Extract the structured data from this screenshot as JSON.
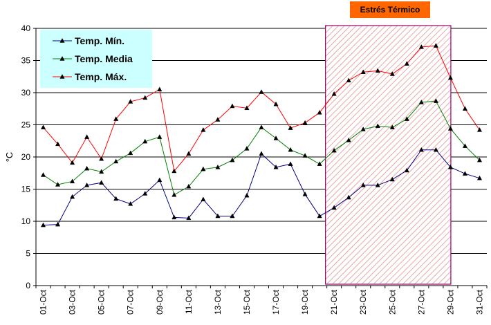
{
  "chart_data": {
    "type": "line",
    "ylabel": "°C",
    "ylim": [
      0,
      40
    ],
    "yticks": [
      0,
      5,
      10,
      15,
      20,
      25,
      30,
      35,
      40
    ],
    "grid": true,
    "legend_position": "top-left",
    "categories": [
      "01-Oct",
      "02-Oct",
      "03-Oct",
      "04-Oct",
      "05-Oct",
      "06-Oct",
      "07-Oct",
      "08-Oct",
      "09-Oct",
      "10-Oct",
      "11-Oct",
      "12-Oct",
      "13-Oct",
      "14-Oct",
      "15-Oct",
      "16-Oct",
      "17-Oct",
      "18-Oct",
      "19-Oct",
      "20-Oct",
      "21-Oct",
      "22-Oct",
      "23-Oct",
      "24-Oct",
      "25-Oct",
      "26-Oct",
      "27-Oct",
      "28-Oct",
      "29-Oct",
      "30-Oct",
      "31-Oct"
    ],
    "tick_labels": [
      "01-Oct",
      "03-Oct",
      "05-Oct",
      "07-Oct",
      "09-Oct",
      "11-Oct",
      "13-Oct",
      "15-Oct",
      "17-Oct",
      "19-Oct",
      "21-Oct",
      "23-Oct",
      "25-Oct",
      "27-Oct",
      "29-Oct",
      "31-Oct"
    ],
    "series": [
      {
        "name": "Temp. Mín.",
        "color": "#000080",
        "values": [
          9.4,
          9.5,
          13.8,
          15.6,
          16.0,
          13.5,
          12.7,
          14.3,
          16.4,
          10.6,
          10.5,
          13.4,
          10.8,
          10.8,
          14.0,
          20.5,
          18.4,
          18.9,
          14.2,
          10.8,
          12.1,
          13.7,
          15.6,
          15.6,
          16.5,
          17.9,
          21.1,
          21.1,
          18.4,
          17.4,
          16.7
        ]
      },
      {
        "name": "Temp. Media",
        "color": "#008000",
        "values": [
          17.2,
          15.7,
          16.2,
          18.2,
          17.7,
          19.3,
          20.6,
          22.4,
          23.1,
          14.1,
          15.4,
          18.1,
          18.4,
          19.5,
          21.3,
          24.6,
          22.9,
          21.1,
          20.2,
          18.9,
          21.0,
          22.6,
          24.3,
          24.8,
          24.6,
          25.9,
          28.5,
          28.7,
          24.4,
          21.7,
          19.5
        ]
      },
      {
        "name": "Temp. Máx.",
        "color": "#ff0000",
        "values": [
          24.6,
          22.0,
          19.1,
          23.1,
          19.7,
          25.9,
          28.6,
          29.2,
          30.5,
          17.8,
          20.5,
          24.2,
          25.8,
          27.9,
          27.6,
          30.1,
          28.2,
          24.5,
          25.3,
          26.9,
          29.8,
          31.9,
          33.2,
          33.4,
          32.9,
          34.5,
          37.1,
          37.3,
          32.3,
          27.5,
          24.2
        ]
      }
    ],
    "highlight": {
      "label": "Estrés Térmico",
      "start": "21-Oct",
      "end": "29-Oct",
      "color": "#c04040",
      "banner_color": "#ff6600"
    }
  }
}
